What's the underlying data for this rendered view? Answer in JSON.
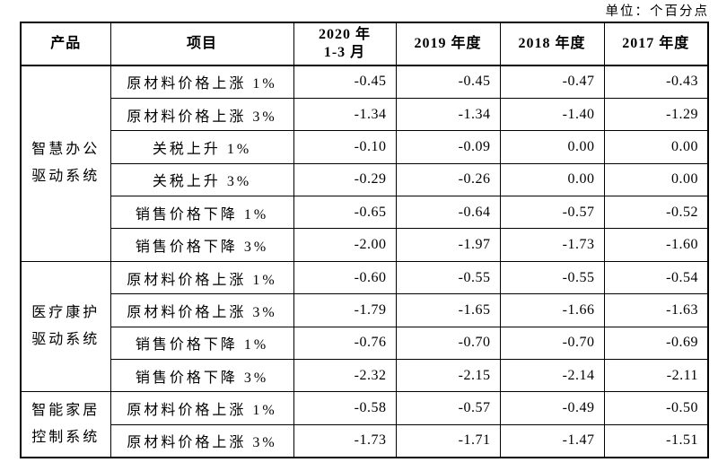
{
  "unit_label": "单位：个百分点",
  "table": {
    "columns": {
      "product": "产品",
      "item": "项目",
      "period_2020_line1": "2020 年",
      "period_2020_line2": "1-3 月",
      "period_2019": "2019 年度",
      "period_2018": "2018 年度",
      "period_2017": "2017 年度"
    },
    "groups": [
      {
        "product": "智慧办公驱动系统",
        "product_lines": [
          "智慧办公",
          "驱动系统"
        ],
        "rows": [
          {
            "item": "原材料价格上涨 1%",
            "values": [
              "-0.45",
              "-0.45",
              "-0.47",
              "-0.43"
            ]
          },
          {
            "item": "原材料价格上涨 3%",
            "values": [
              "-1.34",
              "-1.34",
              "-1.40",
              "-1.29"
            ]
          },
          {
            "item": "关税上升 1%",
            "values": [
              "-0.10",
              "-0.09",
              "0.00",
              "0.00"
            ]
          },
          {
            "item": "关税上升 3%",
            "values": [
              "-0.29",
              "-0.26",
              "0.00",
              "0.00"
            ]
          },
          {
            "item": "销售价格下降 1%",
            "values": [
              "-0.65",
              "-0.64",
              "-0.57",
              "-0.52"
            ]
          },
          {
            "item": "销售价格下降 3%",
            "values": [
              "-2.00",
              "-1.97",
              "-1.73",
              "-1.60"
            ]
          }
        ]
      },
      {
        "product": "医疗康护驱动系统",
        "product_lines": [
          "医疗康护",
          "驱动系统"
        ],
        "rows": [
          {
            "item": "原材料价格上涨 1%",
            "values": [
              "-0.60",
              "-0.55",
              "-0.55",
              "-0.54"
            ]
          },
          {
            "item": "原材料价格上涨 3%",
            "values": [
              "-1.79",
              "-1.65",
              "-1.66",
              "-1.63"
            ]
          },
          {
            "item": "销售价格下降 1%",
            "values": [
              "-0.76",
              "-0.70",
              "-0.70",
              "-0.69"
            ]
          },
          {
            "item": "销售价格下降 3%",
            "values": [
              "-2.32",
              "-2.15",
              "-2.14",
              "-2.11"
            ]
          }
        ]
      },
      {
        "product": "智能家居控制系统",
        "product_lines": [
          "智能家居",
          "控制系统"
        ],
        "rows": [
          {
            "item": "原材料价格上涨 1%",
            "values": [
              "-0.58",
              "-0.57",
              "-0.49",
              "-0.50"
            ]
          },
          {
            "item": "原材料价格上涨 3%",
            "values": [
              "-1.73",
              "-1.71",
              "-1.47",
              "-1.51"
            ]
          }
        ]
      }
    ]
  }
}
